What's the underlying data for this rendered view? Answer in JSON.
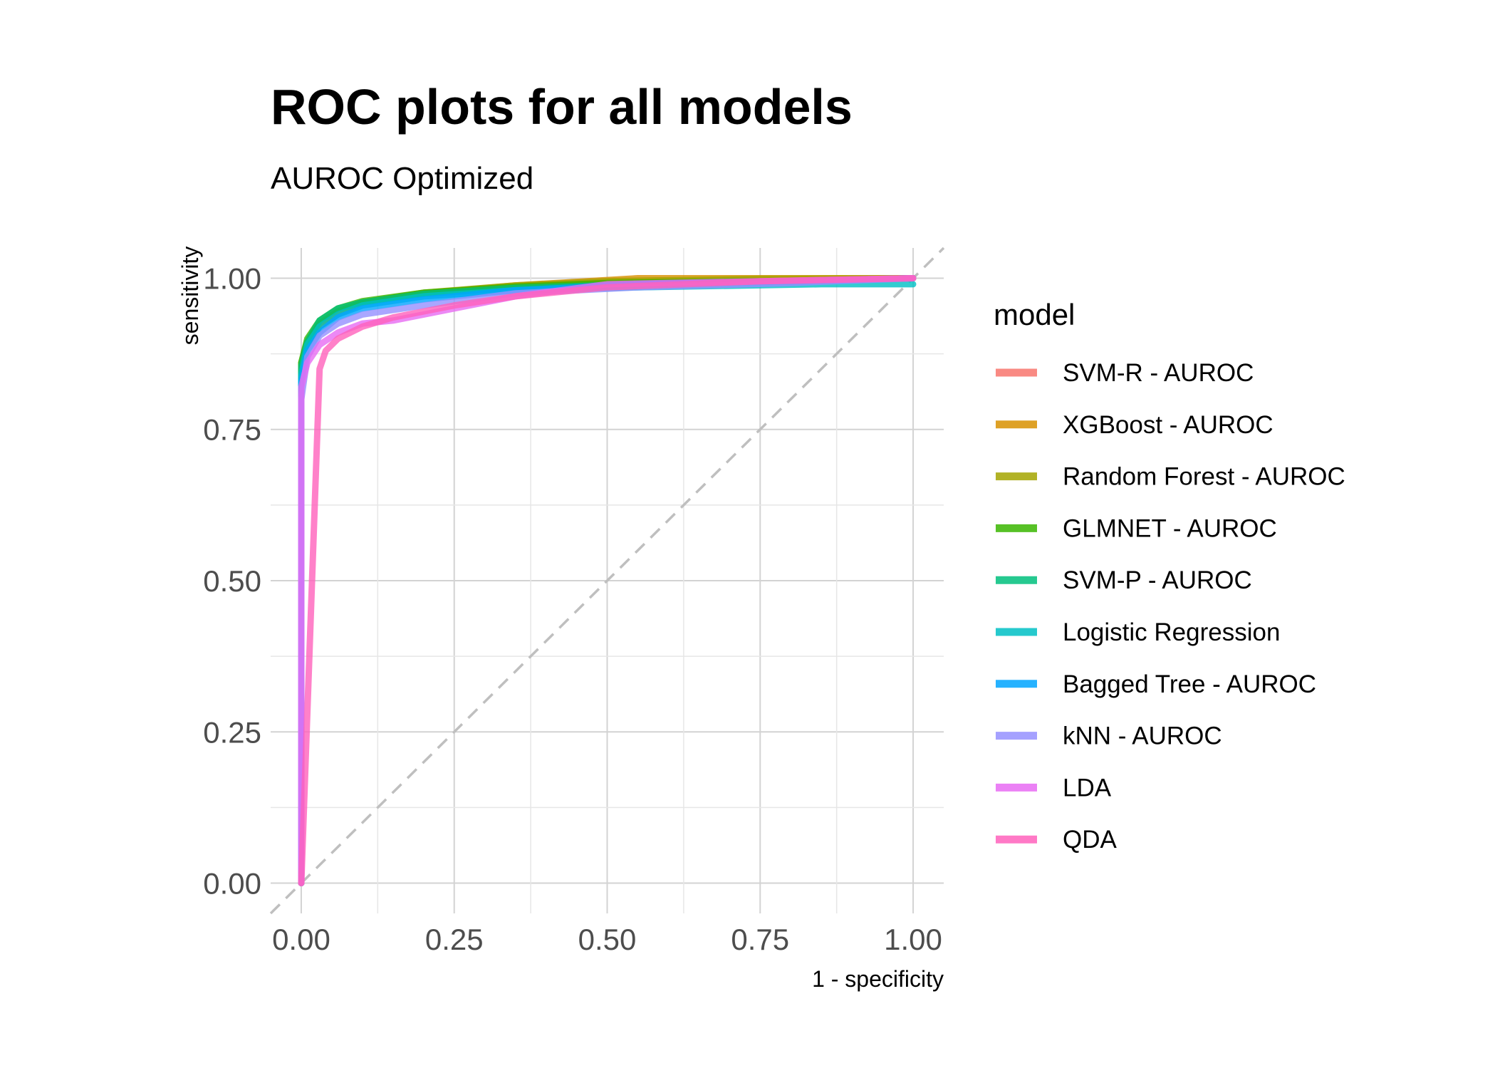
{
  "title": "ROC plots for all models",
  "subtitle": "AUROC Optimized",
  "chart_data": {
    "type": "line",
    "title": "ROC plots for all models",
    "subtitle": "AUROC Optimized",
    "xlabel": "1 - specificity",
    "ylabel": "sensitivity",
    "xlim": [
      -0.05,
      1.05
    ],
    "ylim": [
      -0.05,
      1.05
    ],
    "x_ticks": [
      "0.00",
      "0.25",
      "0.50",
      "0.75",
      "1.00"
    ],
    "y_ticks": [
      "0.00",
      "0.25",
      "0.50",
      "0.75",
      "1.00"
    ],
    "grid": true,
    "reference_line": "diagonal, dashed grey",
    "legend": {
      "title": "model",
      "position": "right"
    },
    "series": [
      {
        "name": "SVM-R - AUROC",
        "color": "#F8766D",
        "points": [
          [
            0,
            0
          ],
          [
            0,
            0.84
          ],
          [
            0.01,
            0.89
          ],
          [
            0.03,
            0.92
          ],
          [
            0.06,
            0.94
          ],
          [
            0.1,
            0.96
          ],
          [
            0.2,
            0.975
          ],
          [
            0.35,
            0.985
          ],
          [
            0.5,
            0.992
          ],
          [
            0.7,
            0.996
          ],
          [
            0.9,
            0.999
          ],
          [
            1,
            1
          ]
        ]
      },
      {
        "name": "XGBoost - AUROC",
        "color": "#D89000",
        "points": [
          [
            0,
            0
          ],
          [
            0,
            0.85
          ],
          [
            0.01,
            0.89
          ],
          [
            0.03,
            0.925
          ],
          [
            0.06,
            0.945
          ],
          [
            0.1,
            0.96
          ],
          [
            0.2,
            0.975
          ],
          [
            0.35,
            0.988
          ],
          [
            0.55,
            1.0
          ],
          [
            0.75,
            1.0
          ],
          [
            1,
            1
          ]
        ]
      },
      {
        "name": "Random Forest - AUROC",
        "color": "#A3A500",
        "points": [
          [
            0,
            0
          ],
          [
            0,
            0.86
          ],
          [
            0.01,
            0.895
          ],
          [
            0.03,
            0.925
          ],
          [
            0.06,
            0.945
          ],
          [
            0.1,
            0.96
          ],
          [
            0.2,
            0.976
          ],
          [
            0.35,
            0.988
          ],
          [
            0.5,
            0.995
          ],
          [
            0.75,
            0.999
          ],
          [
            1,
            1
          ]
        ]
      },
      {
        "name": "GLMNET - AUROC",
        "color": "#39B600",
        "points": [
          [
            0,
            0
          ],
          [
            0,
            0.86
          ],
          [
            0.01,
            0.9
          ],
          [
            0.03,
            0.93
          ],
          [
            0.06,
            0.95
          ],
          [
            0.1,
            0.962
          ],
          [
            0.2,
            0.976
          ],
          [
            0.35,
            0.986
          ],
          [
            0.5,
            0.992
          ],
          [
            0.8,
            0.996
          ],
          [
            1,
            1
          ]
        ]
      },
      {
        "name": "SVM-P - AUROC",
        "color": "#00BF7D",
        "points": [
          [
            0,
            0
          ],
          [
            0,
            0.855
          ],
          [
            0.01,
            0.895
          ],
          [
            0.03,
            0.93
          ],
          [
            0.06,
            0.95
          ],
          [
            0.1,
            0.96
          ],
          [
            0.2,
            0.974
          ],
          [
            0.35,
            0.984
          ],
          [
            0.55,
            0.99
          ],
          [
            0.8,
            0.995
          ],
          [
            1,
            1
          ]
        ]
      },
      {
        "name": "Logistic Regression",
        "color": "#00BFC4",
        "points": [
          [
            0,
            0
          ],
          [
            0,
            0.84
          ],
          [
            0.01,
            0.89
          ],
          [
            0.03,
            0.92
          ],
          [
            0.06,
            0.94
          ],
          [
            0.1,
            0.955
          ],
          [
            0.2,
            0.97
          ],
          [
            0.35,
            0.98
          ],
          [
            0.55,
            0.985
          ],
          [
            0.85,
            0.99
          ],
          [
            1,
            0.99
          ]
        ]
      },
      {
        "name": "Bagged Tree - AUROC",
        "color": "#00A5FF",
        "points": [
          [
            0,
            0
          ],
          [
            0,
            0.83
          ],
          [
            0.01,
            0.88
          ],
          [
            0.03,
            0.91
          ],
          [
            0.06,
            0.935
          ],
          [
            0.1,
            0.95
          ],
          [
            0.2,
            0.965
          ],
          [
            0.35,
            0.98
          ],
          [
            0.55,
            0.99
          ],
          [
            0.8,
            0.995
          ],
          [
            1,
            1
          ]
        ]
      },
      {
        "name": "kNN - AUROC",
        "color": "#9590FF",
        "points": [
          [
            0,
            0
          ],
          [
            0,
            0.8
          ],
          [
            0.01,
            0.87
          ],
          [
            0.03,
            0.905
          ],
          [
            0.06,
            0.925
          ],
          [
            0.1,
            0.94
          ],
          [
            0.2,
            0.955
          ],
          [
            0.35,
            0.975
          ],
          [
            0.55,
            0.985
          ],
          [
            0.8,
            0.992
          ],
          [
            1,
            1
          ]
        ]
      },
      {
        "name": "LDA",
        "color": "#E76BF3",
        "points": [
          [
            0,
            0
          ],
          [
            0,
            0.82
          ],
          [
            0.01,
            0.86
          ],
          [
            0.03,
            0.89
          ],
          [
            0.06,
            0.91
          ],
          [
            0.1,
            0.925
          ],
          [
            0.15,
            0.93
          ],
          [
            0.2,
            0.94
          ],
          [
            0.25,
            0.95
          ],
          [
            0.35,
            0.97
          ],
          [
            0.5,
            0.99
          ],
          [
            0.75,
            0.995
          ],
          [
            1,
            1
          ]
        ]
      },
      {
        "name": "QDA",
        "color": "#FF62BC",
        "points": [
          [
            0,
            0
          ],
          [
            0.03,
            0.85
          ],
          [
            0.04,
            0.88
          ],
          [
            0.06,
            0.9
          ],
          [
            0.1,
            0.92
          ],
          [
            0.15,
            0.935
          ],
          [
            0.25,
            0.955
          ],
          [
            0.35,
            0.97
          ],
          [
            0.5,
            0.985
          ],
          [
            0.75,
            0.995
          ],
          [
            1,
            1
          ]
        ]
      }
    ]
  }
}
